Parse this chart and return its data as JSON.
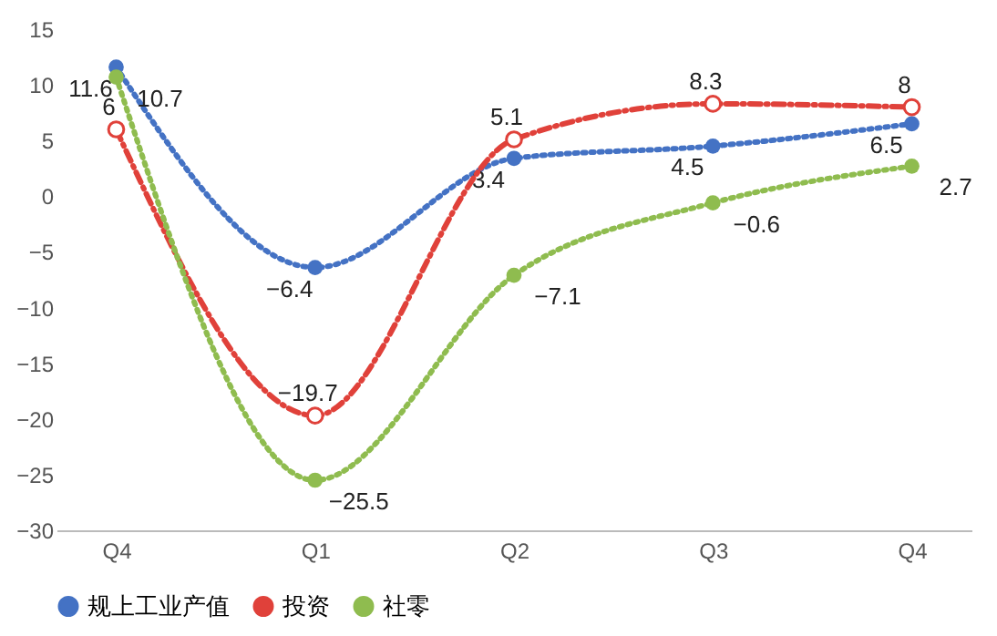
{
  "chart_data": {
    "type": "line",
    "categories": [
      "Q4",
      "Q1",
      "Q2",
      "Q3",
      "Q4"
    ],
    "series": [
      {
        "name": "规上工业产值",
        "color": "#4472c4",
        "values": [
          11.6,
          -6.4,
          3.4,
          4.5,
          6.5
        ],
        "line_style": "dotted",
        "marker": "circle"
      },
      {
        "name": "投资",
        "color": "#e0413a",
        "values": [
          6,
          -19.7,
          5.1,
          8.3,
          8
        ],
        "line_style": "dashed",
        "marker": "circle"
      },
      {
        "name": "社零",
        "color": "#8fbc4f",
        "values": [
          10.7,
          -25.5,
          -7.1,
          -0.6,
          2.7
        ],
        "line_style": "dotted",
        "marker": "circle"
      }
    ],
    "ylim": [
      -30,
      15
    ],
    "yticks": [
      -30,
      -25,
      -20,
      -15,
      -10,
      -5,
      0,
      5,
      10,
      15
    ],
    "grid": false,
    "data_labels": true,
    "legend": "bottom"
  }
}
